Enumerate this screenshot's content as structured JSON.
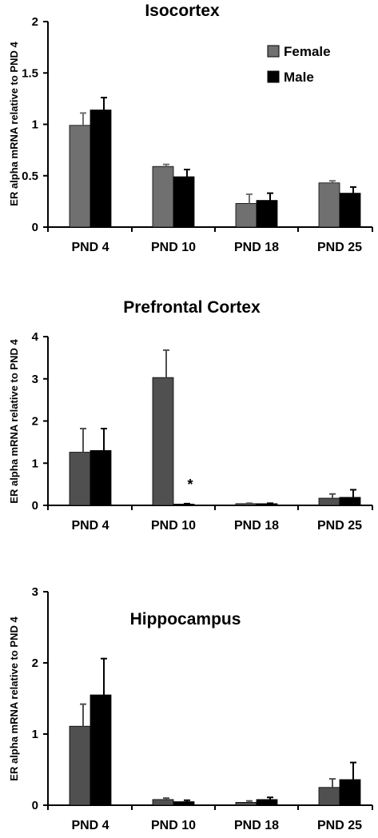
{
  "legend": [
    {
      "label": "Female",
      "color": "#707070"
    },
    {
      "label": "Male",
      "color": "#000000"
    }
  ],
  "chart_data": [
    {
      "type": "bar",
      "title": "Isocortex",
      "ylabel": "ER alpha mRNA relative to PND 4",
      "ylim": [
        0,
        2
      ],
      "yticks": [
        "0",
        "0.5",
        "1",
        "1.5",
        "2"
      ],
      "ytick_values": [
        0,
        0.5,
        1,
        1.5,
        2
      ],
      "categories": [
        "PND 4",
        "PND 10",
        "PND 18",
        "PND 25"
      ],
      "series": [
        {
          "name": "Female",
          "color": "#707070",
          "values": [
            0.99,
            0.59,
            0.23,
            0.43
          ],
          "errors": [
            0.12,
            0.02,
            0.09,
            0.02
          ]
        },
        {
          "name": "Male",
          "color": "#000000",
          "values": [
            1.14,
            0.49,
            0.26,
            0.33
          ],
          "errors": [
            0.12,
            0.07,
            0.07,
            0.06
          ]
        }
      ],
      "legend_position": "top-right",
      "annotations": []
    },
    {
      "type": "bar",
      "title": "Prefrontal Cortex",
      "ylabel": "ER alpha mRNA relative to PND 4",
      "ylim": [
        0,
        4
      ],
      "yticks": [
        "0",
        "1",
        "2",
        "3",
        "4"
      ],
      "ytick_values": [
        0,
        1,
        2,
        3,
        4
      ],
      "categories": [
        "PND 4",
        "PND 10",
        "PND 18",
        "PND 25"
      ],
      "series": [
        {
          "name": "Female",
          "color": "#505050",
          "values": [
            1.26,
            3.03,
            0.04,
            0.17
          ],
          "errors": [
            0.56,
            0.65,
            0.01,
            0.1
          ]
        },
        {
          "name": "Male",
          "color": "#000000",
          "values": [
            1.3,
            0.03,
            0.04,
            0.19
          ],
          "errors": [
            0.52,
            0.01,
            0.01,
            0.18
          ]
        }
      ],
      "annotations": [
        {
          "text": "*",
          "category": "PND 10",
          "series": "Male"
        }
      ]
    },
    {
      "type": "bar",
      "title": "Hippocampus",
      "ylabel": "ER alpha mRNA relative to PND 4",
      "ylim": [
        0,
        3
      ],
      "yticks": [
        "0",
        "1",
        "2",
        "3"
      ],
      "ytick_values": [
        0,
        1,
        2,
        3
      ],
      "categories": [
        "PND 4",
        "PND 10",
        "PND 18",
        "PND 25"
      ],
      "series": [
        {
          "name": "Female",
          "color": "#505050",
          "values": [
            1.11,
            0.08,
            0.04,
            0.25
          ],
          "errors": [
            0.31,
            0.02,
            0.02,
            0.12
          ]
        },
        {
          "name": "Male",
          "color": "#000000",
          "values": [
            1.55,
            0.05,
            0.08,
            0.36
          ],
          "errors": [
            0.51,
            0.02,
            0.03,
            0.24
          ]
        }
      ],
      "annotations": []
    }
  ]
}
